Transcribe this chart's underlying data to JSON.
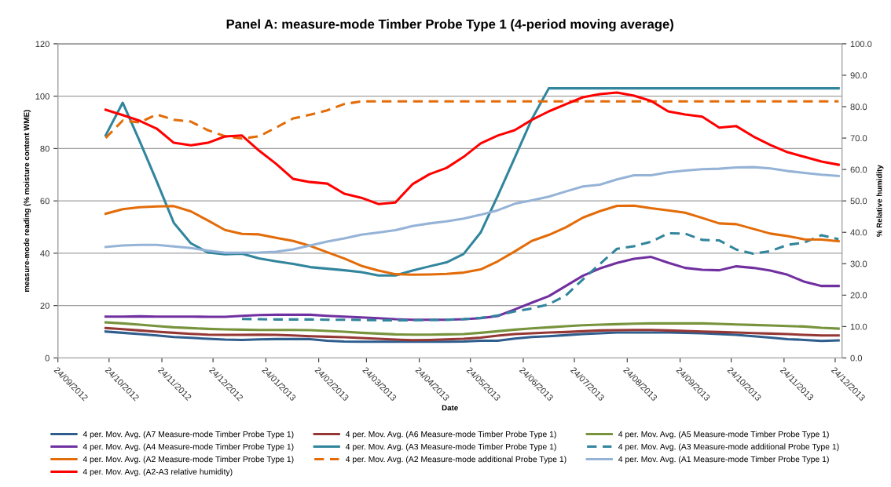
{
  "chart_data": {
    "type": "line",
    "title": "Panel A: measure-mode Timber Probe Type 1 (4-period moving average)",
    "xlabel": "Date",
    "ylabel": "measure-mode reading (% moisture content WME)",
    "y2label": "% Relative humidity",
    "x": [
      "2012-10-22",
      "2012-11-01",
      "2012-11-11",
      "2012-11-21",
      "2012-12-01",
      "2012-12-11",
      "2012-12-21",
      "2012-12-31",
      "2013-01-10",
      "2013-01-20",
      "2013-01-30",
      "2013-02-09",
      "2013-02-19",
      "2013-03-01",
      "2013-03-11",
      "2013-03-21",
      "2013-03-31",
      "2013-04-10",
      "2013-04-20",
      "2013-04-30",
      "2013-05-10",
      "2013-05-20",
      "2013-05-30",
      "2013-06-09",
      "2013-06-19",
      "2013-06-29",
      "2013-07-09",
      "2013-07-19",
      "2013-07-29",
      "2013-08-08",
      "2013-08-18",
      "2013-08-28",
      "2013-09-07",
      "2013-09-17",
      "2013-09-27",
      "2013-10-07",
      "2013-10-17",
      "2013-10-27",
      "2013-11-06",
      "2013-11-16",
      "2013-11-26",
      "2013-12-06",
      "2013-12-16",
      "2013-12-26"
    ],
    "xlim": [
      "2012-09-24",
      "2013-12-28"
    ],
    "xticks": [
      {
        "value": "2012-09-24",
        "label": "24/09/2012"
      },
      {
        "value": "2012-10-24",
        "label": "24/10/2012"
      },
      {
        "value": "2012-11-24",
        "label": "24/11/2012"
      },
      {
        "value": "2012-12-24",
        "label": "24/12/2012"
      },
      {
        "value": "2013-01-24",
        "label": "24/01/2013"
      },
      {
        "value": "2013-02-24",
        "label": "24/02/2013"
      },
      {
        "value": "2013-03-24",
        "label": "24/03/2013"
      },
      {
        "value": "2013-04-24",
        "label": "24/04/2013"
      },
      {
        "value": "2013-05-24",
        "label": "24/05/2013"
      },
      {
        "value": "2013-06-24",
        "label": "24/06/2013"
      },
      {
        "value": "2013-07-24",
        "label": "24/07/2013"
      },
      {
        "value": "2013-08-24",
        "label": "24/08/2013"
      },
      {
        "value": "2013-09-24",
        "label": "24/09/2013"
      },
      {
        "value": "2013-10-24",
        "label": "24/10/2013"
      },
      {
        "value": "2013-11-24",
        "label": "24/11/2013"
      },
      {
        "value": "2013-12-24",
        "label": "24/12/2013"
      }
    ],
    "ylim": [
      0,
      120
    ],
    "yticks": [
      0,
      20,
      40,
      60,
      80,
      100,
      120
    ],
    "y2lim": [
      0,
      100
    ],
    "y2ticks": [
      {
        "value": 0,
        "label": "0.0"
      },
      {
        "value": 10,
        "label": "10.0"
      },
      {
        "value": 20,
        "label": "20.0"
      },
      {
        "value": 30,
        "label": "30.0"
      },
      {
        "value": 40,
        "label": "40.0"
      },
      {
        "value": 50,
        "label": "50.0"
      },
      {
        "value": 60,
        "label": "60.0"
      },
      {
        "value": 70,
        "label": "70.0"
      },
      {
        "value": 80,
        "label": "80.0"
      },
      {
        "value": 90,
        "label": "90.0"
      },
      {
        "value": 100,
        "label": "100.0"
      }
    ],
    "grid": "y",
    "legend": "bottom",
    "marker": "none",
    "line_style": "solid",
    "series": [
      {
        "name": "4 per. Mov. Avg. (A7 Measure-mode Timber Probe Type 1)",
        "color": "#2e5d8e",
        "values": [
          10.1,
          9.6,
          9.1,
          8.6,
          8.0,
          7.7,
          7.3,
          7.0,
          6.9,
          7.1,
          7.2,
          7.2,
          7.2,
          6.6,
          6.3,
          6.2,
          6.2,
          6.2,
          6.2,
          6.2,
          6.2,
          6.3,
          6.6,
          6.6,
          7.4,
          8.0,
          8.3,
          8.7,
          9.1,
          9.4,
          9.7,
          9.7,
          9.7,
          9.7,
          9.6,
          9.4,
          9.1,
          8.8,
          8.3,
          7.8,
          7.2,
          6.9,
          6.5,
          6.7
        ]
      },
      {
        "name": "4 per. Mov. Avg. (A6 Measure-mode Timber Probe Type 1)",
        "color": "#953735",
        "values": [
          11.4,
          11.0,
          10.5,
          10.0,
          9.6,
          9.2,
          8.9,
          8.8,
          8.8,
          8.9,
          8.8,
          8.6,
          8.3,
          8.1,
          7.9,
          7.6,
          7.3,
          7.0,
          6.8,
          6.9,
          7.1,
          7.3,
          7.8,
          8.5,
          9.1,
          9.4,
          9.7,
          9.9,
          10.2,
          10.5,
          10.6,
          10.7,
          10.7,
          10.5,
          10.3,
          10.1,
          9.9,
          9.7,
          9.5,
          9.3,
          9.1,
          8.8,
          8.6,
          8.6
        ]
      },
      {
        "name": "4 per. Mov. Avg. (A5 Measure-mode Timber Probe Type 1)",
        "color": "#77933c",
        "values": [
          13.6,
          13.2,
          12.7,
          12.2,
          11.7,
          11.4,
          11.1,
          10.9,
          10.8,
          10.7,
          10.7,
          10.7,
          10.6,
          10.3,
          10.0,
          9.6,
          9.3,
          9.0,
          8.9,
          8.9,
          9.0,
          9.1,
          9.6,
          10.2,
          10.8,
          11.3,
          11.7,
          12.1,
          12.5,
          12.7,
          12.9,
          13.1,
          13.2,
          13.2,
          13.2,
          13.2,
          13.0,
          12.8,
          12.6,
          12.4,
          12.2,
          12.0,
          11.5,
          11.2
        ]
      },
      {
        "name": "4 per. Mov. Avg. (A4 Measure-mode Timber Probe Type 1)",
        "color": "#7030a0",
        "values": [
          15.8,
          15.8,
          15.9,
          15.8,
          15.8,
          15.8,
          15.7,
          15.7,
          16.1,
          16.4,
          16.5,
          16.5,
          16.5,
          16.1,
          15.8,
          15.5,
          15.2,
          14.8,
          14.6,
          14.6,
          14.6,
          14.8,
          15.2,
          16.0,
          18.5,
          21.1,
          23.6,
          27.5,
          31.4,
          34.2,
          36.3,
          37.9,
          38.6,
          36.4,
          34.4,
          33.7,
          33.5,
          35.0,
          34.4,
          33.4,
          31.8,
          29.1,
          27.5,
          27.5
        ]
      },
      {
        "name": "4 per. Mov. Avg. (A3 Measure-mode Timber Probe Type 1)",
        "color": "#31859c",
        "values": [
          85.0,
          97.5,
          82.8,
          67.4,
          51.6,
          43.8,
          40.3,
          39.6,
          39.8,
          38.0,
          36.9,
          35.9,
          34.7,
          34.1,
          33.5,
          32.8,
          31.5,
          31.5,
          33.4,
          35.0,
          36.5,
          39.7,
          47.9,
          61.9,
          76.5,
          91.2,
          103.0,
          103.0,
          103.0,
          103.0,
          103.0,
          103.0,
          103.0,
          103.0,
          103.0,
          103.0,
          103.0,
          103.0,
          103.0,
          103.0,
          103.0,
          103.0,
          103.0,
          103.0
        ]
      },
      {
        "name": "4 per. Mov. Avg. (A3 Measure-mode additional Probe Type 1)",
        "color": "#31859c",
        "line_style": "dashed",
        "values": [
          null,
          null,
          null,
          null,
          null,
          null,
          null,
          null,
          14.9,
          14.8,
          14.7,
          14.7,
          14.7,
          14.6,
          14.6,
          14.5,
          14.4,
          14.4,
          14.4,
          14.5,
          14.6,
          14.8,
          15.3,
          16.2,
          17.8,
          18.9,
          20.5,
          23.9,
          30.0,
          35.9,
          41.7,
          42.7,
          44.4,
          47.6,
          47.5,
          45.1,
          44.9,
          41.4,
          39.8,
          40.8,
          43.2,
          44.1,
          46.9,
          45.4
        ]
      },
      {
        "name": "4 per. Mov. Avg. (A2 Measure-mode Timber Probe Type 1)",
        "color": "#e36c09",
        "values": [
          55.1,
          56.8,
          57.6,
          57.9,
          58.0,
          56.0,
          52.5,
          48.9,
          47.4,
          47.2,
          45.9,
          44.7,
          42.8,
          40.4,
          38.0,
          35.2,
          33.4,
          32.0,
          31.8,
          31.9,
          32.1,
          32.6,
          33.8,
          36.9,
          40.7,
          44.7,
          47.0,
          49.9,
          53.6,
          56.1,
          58.1,
          58.2,
          57.2,
          56.4,
          55.5,
          53.5,
          51.4,
          51.1,
          49.3,
          47.5,
          46.6,
          45.3,
          45.2,
          44.6
        ]
      },
      {
        "name": "4 per. Mov. Avg. (A2 Measure-mode additional Probe Type 1)",
        "color": "#e36c09",
        "line_style": "dashed",
        "values": [
          84.0,
          90.7,
          90.0,
          93.0,
          91.0,
          90.3,
          87.0,
          84.7,
          83.8,
          84.7,
          88.0,
          91.5,
          92.9,
          94.6,
          97.0,
          98.0,
          98.0,
          98.0,
          98.0,
          98.0,
          98.0,
          98.0,
          98.0,
          98.0,
          98.0,
          98.0,
          98.0,
          98.0,
          98.0,
          98.0,
          98.0,
          98.0,
          98.0,
          98.0,
          98.0,
          98.0,
          98.0,
          98.0,
          98.0,
          98.0,
          98.0,
          98.0,
          98.0,
          98.0
        ]
      },
      {
        "name": "4 per. Mov. Avg. (A1 Measure-mode Timber Probe Type 1)",
        "color": "#95b3d7",
        "values": [
          42.4,
          43.0,
          43.2,
          43.2,
          42.6,
          42.0,
          41.0,
          40.2,
          40.2,
          40.3,
          40.6,
          41.5,
          43.0,
          44.5,
          45.7,
          47.1,
          47.9,
          48.8,
          50.4,
          51.4,
          52.2,
          53.2,
          54.7,
          56.4,
          58.9,
          60.2,
          61.6,
          63.6,
          65.5,
          66.2,
          68.2,
          69.8,
          69.8,
          70.9,
          71.6,
          72.1,
          72.3,
          72.8,
          72.9,
          72.4,
          71.4,
          70.7,
          70.0,
          69.5
        ]
      },
      {
        "name": "4 per. Mov. Avg. (A2-A3 relative humidity)",
        "color": "#ff0000",
        "axis": "y2",
        "values": [
          79.0,
          77.3,
          75.5,
          73.0,
          68.5,
          67.7,
          68.5,
          70.5,
          70.8,
          66.0,
          61.8,
          57.0,
          56.0,
          55.5,
          52.3,
          51.0,
          49.0,
          49.5,
          55.3,
          58.5,
          60.5,
          64.0,
          68.3,
          70.8,
          72.5,
          75.8,
          78.5,
          80.8,
          83.0,
          84.0,
          84.5,
          83.5,
          81.8,
          78.5,
          77.5,
          76.8,
          73.3,
          73.8,
          70.5,
          67.8,
          65.5,
          64.0,
          62.5,
          61.5
        ]
      }
    ]
  }
}
